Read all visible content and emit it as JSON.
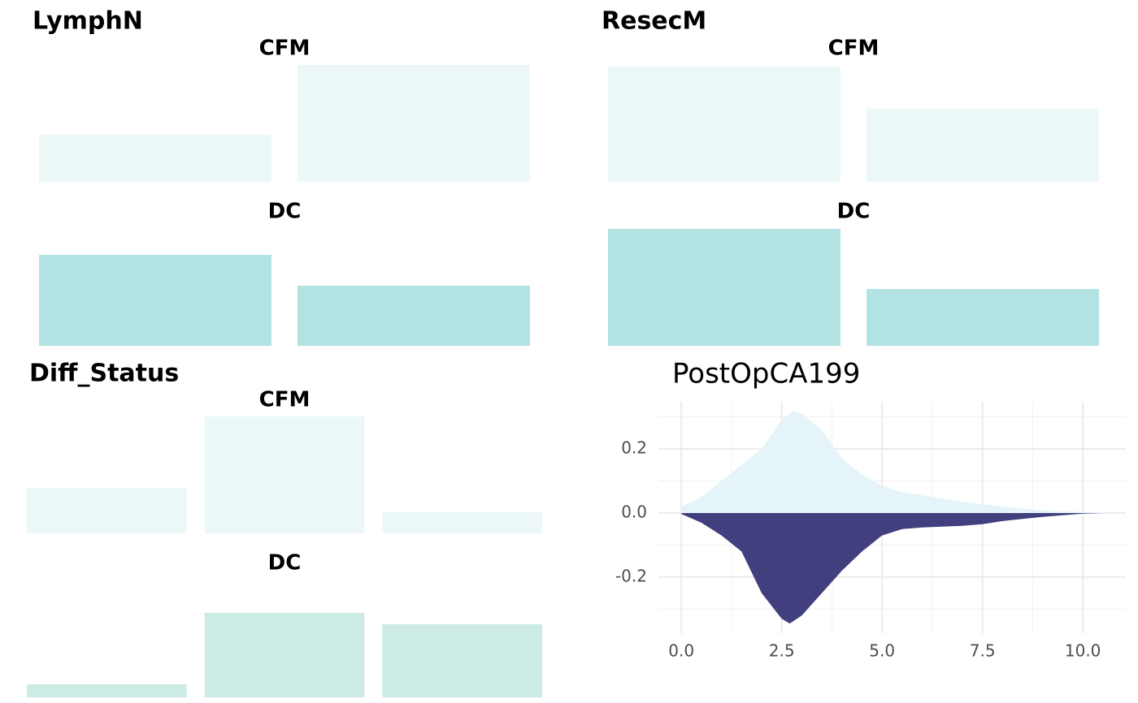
{
  "chart_data": [
    {
      "type": "bar",
      "title": "LymphN",
      "ylim": [
        0,
        0.75
      ],
      "facets": [
        {
          "title": "CFM",
          "color": "#ecf7f8",
          "values": [
            0.29,
            0.72
          ]
        },
        {
          "title": "DC",
          "color": "#b2e2e2",
          "values": [
            0.56,
            0.37
          ]
        }
      ]
    },
    {
      "type": "bar",
      "title": "ResecM",
      "ylim": [
        0,
        0.75
      ],
      "facets": [
        {
          "title": "CFM",
          "color": "#ecf7f8",
          "values": [
            0.71,
            0.45
          ]
        },
        {
          "title": "DC",
          "color": "#b2e2e2",
          "values": [
            0.72,
            0.35
          ]
        }
      ]
    },
    {
      "type": "bar",
      "title": "Diff_Status",
      "ylim": [
        0,
        0.75
      ],
      "facets": [
        {
          "title": "CFM",
          "color": "#ecf7f8",
          "values": [
            0.28,
            0.72,
            0.13
          ]
        },
        {
          "title": "DC",
          "color": "#ccebe4",
          "values": [
            0.08,
            0.52,
            0.45
          ]
        }
      ]
    },
    {
      "type": "area",
      "title": "PostOpCA199",
      "grid": true,
      "xlim": [
        -0.57,
        11.07
      ],
      "ylim": [
        -0.375,
        0.347
      ],
      "xticks": [
        {
          "value": 0,
          "label": "0.0"
        },
        {
          "value": 2.5,
          "label": "2.5"
        },
        {
          "value": 5,
          "label": "5.0"
        },
        {
          "value": 7.5,
          "label": "7.5"
        },
        {
          "value": 10,
          "label": "10.0"
        }
      ],
      "yticks": [
        {
          "value": -0.2,
          "label": "-0.2"
        },
        {
          "value": 0,
          "label": "0.0"
        },
        {
          "value": 0.2,
          "label": "0.2"
        }
      ],
      "x_minor_grid": [
        1.25,
        3.75,
        6.25,
        8.75
      ],
      "y_minor_grid": [
        -0.3,
        -0.1,
        0.1,
        0.3
      ],
      "series": [
        {
          "color": "#e5f4f8",
          "x": [
            0,
            0.5,
            1,
            1.5,
            2,
            2.5,
            2.8,
            3,
            3.5,
            4,
            4.5,
            5,
            5.5,
            6,
            7,
            8,
            9,
            10,
            10.5
          ],
          "values": [
            0.02,
            0.05,
            0.1,
            0.15,
            0.2,
            0.29,
            0.32,
            0.31,
            0.26,
            0.17,
            0.12,
            0.085,
            0.065,
            0.055,
            0.035,
            0.02,
            0.008,
            0.003,
            0.002
          ]
        },
        {
          "color": "#423f7e",
          "x": [
            0,
            0.5,
            1,
            1.5,
            2,
            2.5,
            2.7,
            3,
            3.5,
            4,
            4.5,
            5,
            5.5,
            6,
            7,
            7.5,
            8,
            9,
            10,
            10.5
          ],
          "values": [
            -0.003,
            -0.03,
            -0.07,
            -0.12,
            -0.25,
            -0.33,
            -0.345,
            -0.32,
            -0.25,
            -0.18,
            -0.12,
            -0.07,
            -0.05,
            -0.045,
            -0.04,
            -0.035,
            -0.025,
            -0.012,
            -0.002,
            0
          ]
        }
      ]
    }
  ]
}
